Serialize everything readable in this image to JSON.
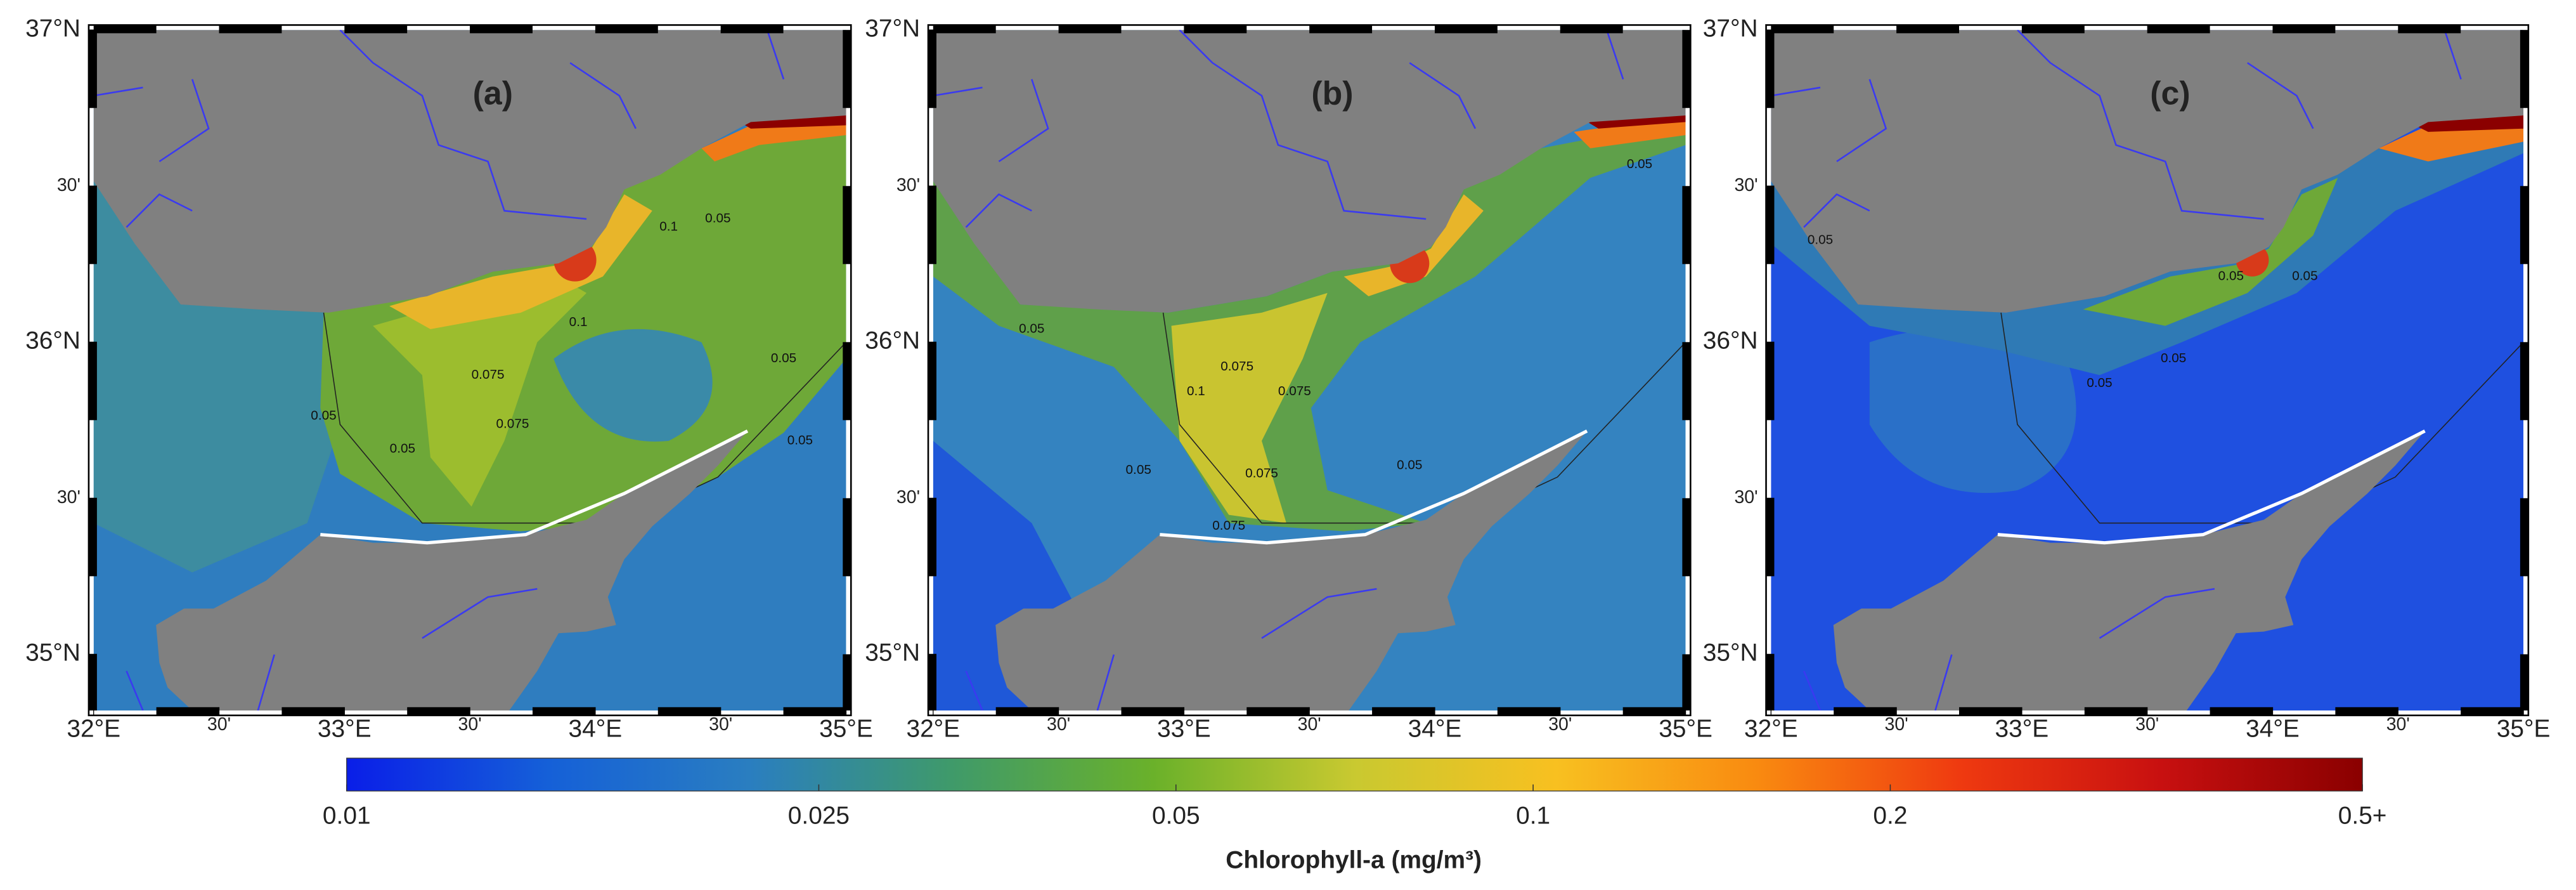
{
  "figure": {
    "lon_range": [
      32,
      35
    ],
    "lat_range": [
      34.82,
      37
    ],
    "lat_ticks": [
      {
        "value": 35,
        "label": "35°N"
      },
      {
        "value": 35.5,
        "label": "30'"
      },
      {
        "value": 36,
        "label": "36°N"
      },
      {
        "value": 36.5,
        "label": "30'"
      },
      {
        "value": 37,
        "label": "37°N"
      }
    ],
    "lon_ticks": [
      {
        "value": 32,
        "label": "32°E"
      },
      {
        "value": 32.5,
        "label": "30'"
      },
      {
        "value": 33,
        "label": "33°E"
      },
      {
        "value": 33.5,
        "label": "30'"
      },
      {
        "value": 34,
        "label": "34°E"
      },
      {
        "value": 34.5,
        "label": "30'"
      },
      {
        "value": 35,
        "label": "35°E"
      }
    ],
    "panels": [
      {
        "label": "(a)",
        "contour_labels": [
          "0.1",
          "0.1",
          "0.075",
          "0.075",
          "0.05",
          "0.05",
          "0.05",
          "0.05",
          "0.05"
        ]
      },
      {
        "label": "(b)",
        "contour_labels": [
          "0.075",
          "0.075",
          "0.1",
          "0.075",
          "0.075",
          "0.05",
          "0.05",
          "0.05",
          "0.05"
        ]
      },
      {
        "label": "(c)",
        "contour_labels": [
          "0.05",
          "0.05",
          "0.05",
          "0.05",
          "0.05"
        ]
      }
    ],
    "colorbar": {
      "title": "Chlorophyll-a (mg/m³)",
      "range": [
        0.01,
        0.5
      ],
      "log": true,
      "ticks": [
        0.01,
        0.025,
        0.05,
        0.1,
        0.2,
        {
          "value": 0.5,
          "label": "0.5+"
        }
      ]
    }
  }
}
